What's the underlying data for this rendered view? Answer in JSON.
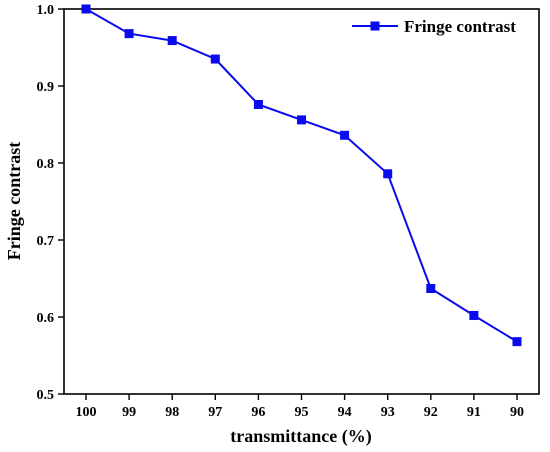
{
  "chart_data": {
    "type": "line",
    "title": "",
    "xlabel": "transmittance (%)",
    "ylabel": "Fringe contrast",
    "x": [
      "100",
      "99",
      "98",
      "97",
      "96",
      "95",
      "94",
      "93",
      "92",
      "91",
      "90"
    ],
    "series": [
      {
        "name": "Fringe contrast",
        "values": [
          1.0,
          0.968,
          0.959,
          0.935,
          0.876,
          0.856,
          0.836,
          0.786,
          0.637,
          0.602,
          0.568
        ],
        "color": "#0a0af0",
        "marker": "square"
      }
    ],
    "ylim": [
      0.5,
      1.0
    ],
    "yticks": [
      "0.5",
      "0.6",
      "0.7",
      "0.8",
      "0.9",
      "1.0"
    ],
    "grid": false,
    "legend_position": "top-right"
  }
}
